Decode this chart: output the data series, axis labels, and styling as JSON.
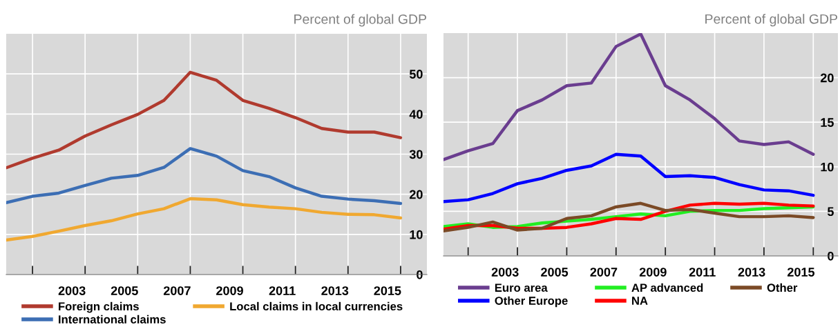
{
  "chart_data": [
    {
      "type": "line",
      "ylabel": "Percent of global GDP",
      "x": [
        2001,
        2002,
        2003,
        2004,
        2005,
        2006,
        2007,
        2008,
        2009,
        2010,
        2011,
        2012,
        2013,
        2014,
        2015,
        2016
      ],
      "series": [
        {
          "name": "Foreign claims",
          "color": "#b03a2e",
          "values": [
            26.6,
            29.0,
            31.0,
            34.5,
            37.3,
            39.9,
            43.4,
            50.4,
            48.4,
            43.4,
            41.4,
            39.1,
            36.4,
            35.5,
            35.5,
            34.1
          ]
        },
        {
          "name": "International claims",
          "color": "#3c6eb4",
          "values": [
            17.9,
            19.5,
            20.3,
            22.2,
            24.0,
            24.7,
            26.7,
            31.4,
            29.5,
            25.9,
            24.4,
            21.6,
            19.5,
            18.8,
            18.4,
            17.7
          ]
        },
        {
          "name": "Local claims in local currencies",
          "color": "#f0a830",
          "values": [
            8.6,
            9.5,
            10.8,
            12.2,
            13.4,
            15.1,
            16.4,
            18.9,
            18.6,
            17.4,
            16.8,
            16.4,
            15.5,
            15.0,
            14.9,
            14.1
          ]
        }
      ],
      "xlim": [
        2001,
        2017
      ],
      "xticks": [
        {
          "value": 2002,
          "label": null
        },
        {
          "value": 2004,
          "label": null
        },
        {
          "value": 2006,
          "label": null
        },
        {
          "value": 2008,
          "label": null
        },
        {
          "value": 2010,
          "label": null
        },
        {
          "value": 2012,
          "label": null
        },
        {
          "value": 2014,
          "label": null
        },
        {
          "value": 2016,
          "label": null
        },
        {
          "value": 2003.5,
          "label": "2003"
        },
        {
          "value": 2005.5,
          "label": "2005"
        },
        {
          "value": 2007.5,
          "label": "2007"
        },
        {
          "value": 2009.5,
          "label": "2009"
        },
        {
          "value": 2011.5,
          "label": "2011"
        },
        {
          "value": 2013.5,
          "label": "2013"
        },
        {
          "value": 2015.5,
          "label": "2015"
        }
      ],
      "ylim": [
        0,
        60
      ],
      "yticks": [
        0,
        10,
        20,
        30,
        40,
        50
      ],
      "grid": true,
      "legend": "bottom",
      "marker": "none",
      "line_style": "solid"
    },
    {
      "type": "line",
      "ylabel": "Percent of global GDP",
      "x": [
        2001,
        2002,
        2003,
        2004,
        2005,
        2006,
        2007,
        2008,
        2009,
        2010,
        2011,
        2012,
        2013,
        2014,
        2015,
        2016
      ],
      "series": [
        {
          "name": "Euro area",
          "color": "#6a3d8f",
          "values": [
            10.8,
            11.8,
            12.6,
            16.3,
            17.5,
            19.1,
            19.4,
            23.5,
            24.9,
            19.1,
            17.5,
            15.4,
            12.9,
            12.5,
            12.8,
            11.4
          ]
        },
        {
          "name": "Other Europe",
          "color": "#0000ff",
          "values": [
            6.1,
            6.3,
            7.0,
            8.1,
            8.7,
            9.6,
            10.1,
            11.4,
            11.2,
            8.9,
            9.0,
            8.8,
            8.0,
            7.4,
            7.3,
            6.8
          ]
        },
        {
          "name": "AP advanced",
          "color": "#22ee22",
          "values": [
            3.3,
            3.6,
            3.2,
            3.3,
            3.7,
            3.9,
            4.1,
            4.4,
            4.7,
            4.5,
            5.0,
            5.1,
            5.1,
            5.3,
            5.4,
            5.5
          ]
        },
        {
          "name": "NA",
          "color": "#ff0000",
          "values": [
            3.0,
            3.4,
            3.4,
            3.1,
            3.1,
            3.2,
            3.6,
            4.2,
            4.1,
            5.0,
            5.7,
            5.9,
            5.8,
            5.9,
            5.7,
            5.6
          ]
        },
        {
          "name": "Other",
          "color": "#7b4a26",
          "values": [
            2.8,
            3.2,
            3.8,
            2.9,
            3.1,
            4.2,
            4.5,
            5.5,
            5.9,
            5.1,
            5.2,
            4.8,
            4.4,
            4.4,
            4.5,
            4.3
          ]
        }
      ],
      "xlim": [
        2001,
        2017
      ],
      "xticks": [
        {
          "value": 2002,
          "label": null
        },
        {
          "value": 2004,
          "label": null
        },
        {
          "value": 2006,
          "label": null
        },
        {
          "value": 2008,
          "label": null
        },
        {
          "value": 2010,
          "label": null
        },
        {
          "value": 2012,
          "label": null
        },
        {
          "value": 2014,
          "label": null
        },
        {
          "value": 2016,
          "label": null
        },
        {
          "value": 2003.5,
          "label": "2003"
        },
        {
          "value": 2005.5,
          "label": "2005"
        },
        {
          "value": 2007.5,
          "label": "2007"
        },
        {
          "value": 2009.5,
          "label": "2009"
        },
        {
          "value": 2011.5,
          "label": "2011"
        },
        {
          "value": 2013.5,
          "label": "2013"
        },
        {
          "value": 2015.5,
          "label": "2015"
        }
      ],
      "ylim": [
        0,
        25
      ],
      "yticks": [
        0,
        5,
        10,
        15,
        20
      ],
      "grid": true,
      "legend": "bottom",
      "marker": "none",
      "line_style": "solid"
    }
  ]
}
